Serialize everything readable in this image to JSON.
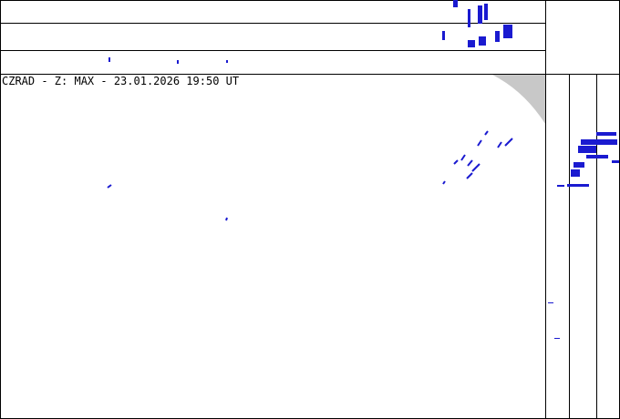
{
  "header": {
    "title": "CZRAD - Z: MAX - 23.01.2026 19:50 UT"
  }
}
